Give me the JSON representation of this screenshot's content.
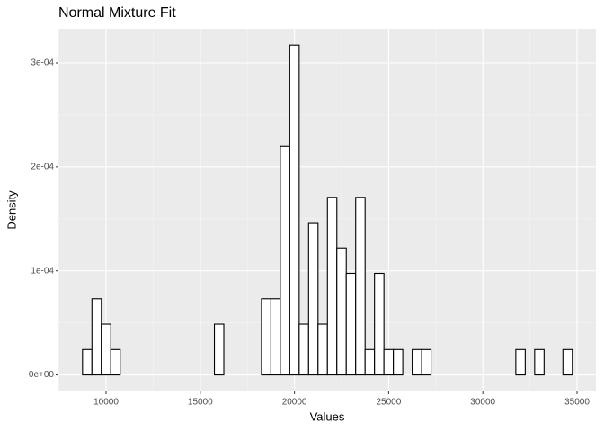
{
  "chart_data": {
    "type": "histogram",
    "title": "Normal Mixture Fit",
    "x_label": "Values",
    "y_label": "Density",
    "bins": [
      8750,
      9250,
      9750,
      10250,
      10750,
      11250,
      11750,
      12250,
      12750,
      13250,
      13750,
      14250,
      14750,
      15250,
      15750,
      16250,
      16750,
      17250,
      17750,
      18250,
      18750,
      19250,
      19750,
      20250,
      20750,
      21250,
      21750,
      22250,
      22750,
      23250,
      23750,
      24250,
      24750,
      25250,
      25750,
      26250,
      26750,
      27250,
      27750,
      28250,
      28750,
      29250,
      29750,
      30250,
      30750,
      31250,
      31750,
      32250,
      32750,
      33250,
      33750,
      34250,
      34750
    ],
    "values": [
      2.44e-05,
      7.32e-05,
      4.88e-05,
      2.44e-05,
      0,
      0,
      0,
      0,
      0,
      0,
      0,
      0,
      0,
      0,
      4.88e-05,
      0,
      0,
      0,
      0,
      7.32e-05,
      7.32e-05,
      0.0002195,
      0.0003171,
      4.88e-05,
      0.0001463,
      4.88e-05,
      0.0001707,
      0.000122,
      9.76e-05,
      0.0001707,
      2.44e-05,
      9.76e-05,
      2.44e-05,
      2.44e-05,
      0,
      2.44e-05,
      2.44e-05,
      0,
      0,
      0,
      0,
      0,
      0,
      0,
      0,
      0,
      2.44e-05,
      0,
      2.44e-05,
      0,
      0,
      2.44e-05
    ],
    "color": "#ffffff",
    "edge_color": "#000000",
    "xlim": [
      7471,
      36002
    ],
    "xticks": [
      10000,
      15000,
      20000,
      25000,
      30000,
      35000
    ],
    "ylim": [
      -1.59e-05,
      0.0003328
    ],
    "yticks": [
      {
        "value": 0,
        "label": "0e+00"
      },
      {
        "value": 0.0001,
        "label": "1e-04"
      },
      {
        "value": 0.0002,
        "label": "2e-04"
      },
      {
        "value": 0.0003,
        "label": "3e-04"
      }
    ],
    "grid": true
  }
}
